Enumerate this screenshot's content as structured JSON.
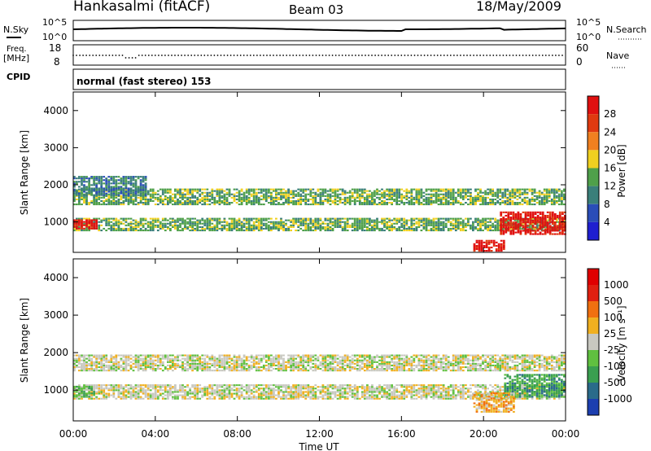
{
  "header": {
    "station": "Hankasalmi (fitACF)",
    "beam": "Beam 03",
    "date": "18/May/2009"
  },
  "status_panels": {
    "nsky_label": "N.Sky",
    "nsearch_label": "N.Search",
    "freq_label_1": "Freq.",
    "freq_label_2": "[MHz]",
    "nave_label": "Nave",
    "cpid_label": "CPID",
    "cpid_value": "normal (fast stereo) 153",
    "noise_ticks": [
      "10^5",
      "10^0"
    ],
    "freq_ticks": [
      "18",
      "8"
    ],
    "nave_ticks": [
      "60",
      "0"
    ]
  },
  "chart_data": [
    {
      "type": "heatmap",
      "title": "",
      "xlabel": "Time UT",
      "ylabel": "Slant Range [km]",
      "x_ticks": [
        "00:00",
        "04:00",
        "08:00",
        "12:00",
        "16:00",
        "20:00",
        "00:00"
      ],
      "y_ticks": [
        "1000",
        "2000",
        "3000",
        "4000"
      ],
      "xlim_hours": [
        0,
        24
      ],
      "ylim_km": [
        180,
        4500
      ],
      "colorbar": {
        "label": "Power [dB]",
        "ticks": [
          "4",
          "8",
          "12",
          "16",
          "20",
          "24",
          "28"
        ],
        "colors": [
          "#1f1fd0",
          "#2a4db8",
          "#3a7f7a",
          "#4fa04a",
          "#f0d020",
          "#f08020",
          "#e03a10",
          "#e01010"
        ]
      },
      "bands": [
        {
          "t0": 0,
          "t1": 24,
          "r0": 1450,
          "r1": 1900,
          "level": 3
        },
        {
          "t0": 0,
          "t1": 24,
          "r0": 750,
          "r1": 1100,
          "level": 3
        },
        {
          "t0": 0,
          "t1": 1.2,
          "r0": 800,
          "r1": 1050,
          "level": 7
        },
        {
          "t0": 20.8,
          "t1": 24,
          "r0": 650,
          "r1": 1250,
          "level": 7
        },
        {
          "t0": 19.5,
          "t1": 21,
          "r0": 200,
          "r1": 500,
          "level": 7
        },
        {
          "t0": 0,
          "t1": 3.5,
          "r0": 1700,
          "r1": 2200,
          "level": 2
        }
      ]
    },
    {
      "type": "heatmap",
      "title": "",
      "xlabel": "Time UT",
      "ylabel": "Slant Range [km]",
      "x_ticks": [
        "00:00",
        "04:00",
        "08:00",
        "12:00",
        "16:00",
        "20:00",
        "00:00"
      ],
      "y_ticks": [
        "1000",
        "2000",
        "3000",
        "4000"
      ],
      "xlim_hours": [
        0,
        24
      ],
      "ylim_km": [
        180,
        4500
      ],
      "colorbar": {
        "label": "Velocity [m s⁻¹]",
        "ticks": [
          "1000",
          "500",
          "100",
          "25",
          "-25",
          "-100",
          "-500",
          "-1000"
        ],
        "colors": [
          "#1c3fb0",
          "#2a6b8a",
          "#3a9f50",
          "#60c040",
          "#c8c8c0",
          "#f0b020",
          "#f07010",
          "#e02010",
          "#e00000"
        ]
      },
      "bands": [
        {
          "t0": 0,
          "t1": 24,
          "r0": 1500,
          "r1": 1950,
          "level": 4
        },
        {
          "t0": 0,
          "t1": 24,
          "r0": 750,
          "r1": 1150,
          "level": 4
        },
        {
          "t0": 0,
          "t1": 1.0,
          "r0": 800,
          "r1": 1100,
          "level": 3
        },
        {
          "t0": 21,
          "t1": 24,
          "r0": 800,
          "r1": 1400,
          "level": 2
        },
        {
          "t0": 19.5,
          "t1": 21.5,
          "r0": 400,
          "r1": 900,
          "level": 5
        }
      ]
    }
  ]
}
